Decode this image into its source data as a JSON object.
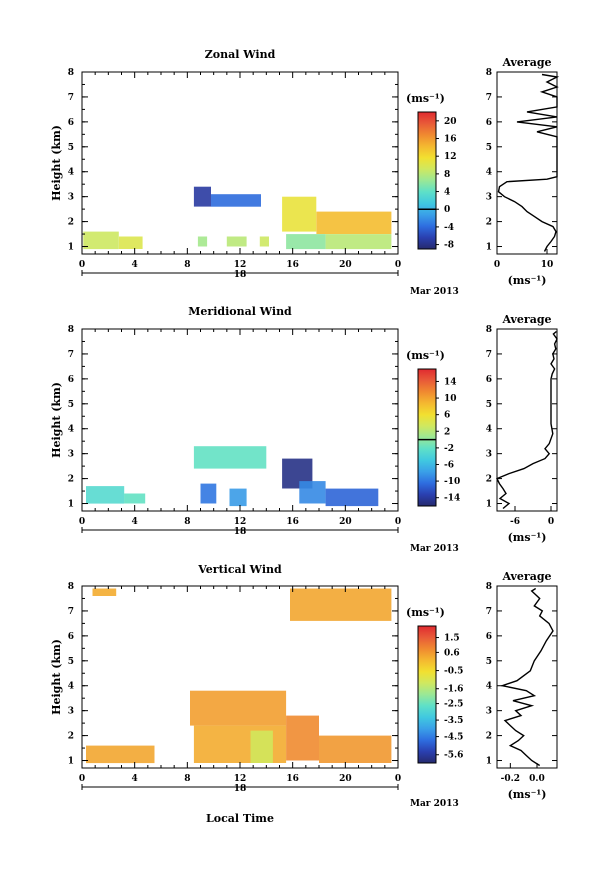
{
  "figure": {
    "x_axis_label": "Local Time",
    "date_label": "Mar 2013",
    "day_label": "18"
  },
  "chart_data": [
    {
      "type": "heatmap",
      "id": "zonal",
      "title": "Zonal Wind",
      "ylabel": "Height (km)",
      "units_label": "(ms⁻¹)",
      "x_ticks": [
        "0",
        "4",
        "8",
        "12",
        "16",
        "20",
        "0"
      ],
      "x_range_hours": [
        0,
        24
      ],
      "y_ticks": [
        "1",
        "2",
        "3",
        "4",
        "5",
        "6",
        "7",
        "8"
      ],
      "y_range_km": [
        0.7,
        8.0
      ],
      "colorbar": {
        "ticks": [
          "20",
          "16",
          "12",
          "8",
          "4",
          "0",
          "-4",
          "-8"
        ],
        "range": [
          -9,
          22
        ],
        "marker_value": 0
      },
      "patches": [
        {
          "t": [
            0.1,
            2.8
          ],
          "z": [
            0.9,
            1.6
          ],
          "value": 9
        },
        {
          "t": [
            2.8,
            4.6
          ],
          "z": [
            0.9,
            1.4
          ],
          "value": 10
        },
        {
          "t": [
            8.5,
            9.8
          ],
          "z": [
            2.6,
            3.4
          ],
          "value": -7
        },
        {
          "t": [
            9.8,
            13.6
          ],
          "z": [
            2.6,
            3.1
          ],
          "value": -4
        },
        {
          "t": [
            8.8,
            9.5
          ],
          "z": [
            1.0,
            1.4
          ],
          "value": 7
        },
        {
          "t": [
            11.0,
            12.5
          ],
          "z": [
            1.0,
            1.4
          ],
          "value": 8
        },
        {
          "t": [
            13.5,
            14.2
          ],
          "z": [
            1.0,
            1.4
          ],
          "value": 9
        },
        {
          "t": [
            15.2,
            17.8
          ],
          "z": [
            1.6,
            3.0
          ],
          "value": 11
        },
        {
          "t": [
            17.8,
            23.5
          ],
          "z": [
            1.5,
            2.4
          ],
          "value": 14
        },
        {
          "t": [
            15.5,
            18.5
          ],
          "z": [
            0.9,
            1.5
          ],
          "value": 6
        },
        {
          "t": [
            18.5,
            23.5
          ],
          "z": [
            0.9,
            1.5
          ],
          "value": 8
        }
      ],
      "profile": {
        "title": "Average",
        "xlabel": "(ms⁻¹)",
        "x_ticks": [
          "0",
          "10"
        ],
        "x_range": [
          0,
          12
        ],
        "heights": [
          0.8,
          1.0,
          1.2,
          1.4,
          1.6,
          1.8,
          2.0,
          2.2,
          2.4,
          2.6,
          2.8,
          3.0,
          3.2,
          3.4,
          3.6,
          3.7,
          3.8,
          4.2,
          4.6,
          5.0,
          5.4,
          5.6,
          5.8,
          6.0,
          6.2,
          6.4,
          6.6,
          6.8,
          7.0,
          7.2,
          7.4,
          7.6,
          7.8,
          7.9
        ],
        "values": [
          9.5,
          10.0,
          10.8,
          11.5,
          11.8,
          11.2,
          9.0,
          7.5,
          6.0,
          5.0,
          3.5,
          1.5,
          0.3,
          0.5,
          2.0,
          10.0,
          12.0,
          12.0,
          12.0,
          12.0,
          12.0,
          8.0,
          12.0,
          4.0,
          12.0,
          6.0,
          12.0,
          12.0,
          12.0,
          9.0,
          12.0,
          10.0,
          12.0,
          9.0
        ]
      }
    },
    {
      "type": "heatmap",
      "id": "meridional",
      "title": "Meridional Wind",
      "ylabel": "Height (km)",
      "units_label": "(ms⁻¹)",
      "x_ticks": [
        "0",
        "4",
        "8",
        "12",
        "16",
        "20",
        "0"
      ],
      "x_range_hours": [
        0,
        24
      ],
      "y_ticks": [
        "1",
        "2",
        "3",
        "4",
        "5",
        "6",
        "7",
        "8"
      ],
      "y_range_km": [
        0.7,
        8.0
      ],
      "colorbar": {
        "ticks": [
          "14",
          "10",
          "6",
          "2",
          "-2",
          "-6",
          "-10",
          "-14"
        ],
        "range": [
          -16,
          17
        ],
        "marker_value": 0
      },
      "patches": [
        {
          "t": [
            0.3,
            3.2
          ],
          "z": [
            1.0,
            1.7
          ],
          "value": -3
        },
        {
          "t": [
            3.2,
            4.8
          ],
          "z": [
            1.0,
            1.4
          ],
          "value": -2
        },
        {
          "t": [
            8.5,
            14.0
          ],
          "z": [
            2.4,
            3.3
          ],
          "value": -2
        },
        {
          "t": [
            9.0,
            10.2
          ],
          "z": [
            1.0,
            1.8
          ],
          "value": -10
        },
        {
          "t": [
            11.2,
            12.5
          ],
          "z": [
            0.9,
            1.6
          ],
          "value": -8
        },
        {
          "t": [
            15.2,
            17.5
          ],
          "z": [
            1.6,
            2.8
          ],
          "value": -15
        },
        {
          "t": [
            16.5,
            18.5
          ],
          "z": [
            1.0,
            1.9
          ],
          "value": -9
        },
        {
          "t": [
            18.5,
            22.5
          ],
          "z": [
            0.9,
            1.6
          ],
          "value": -11
        }
      ],
      "profile": {
        "title": "Average",
        "xlabel": "(ms⁻¹)",
        "x_ticks": [
          "-6",
          "0"
        ],
        "x_range": [
          -9,
          1
        ],
        "heights": [
          0.8,
          1.0,
          1.2,
          1.4,
          1.6,
          1.8,
          2.0,
          2.2,
          2.4,
          2.6,
          2.8,
          3.0,
          3.2,
          3.4,
          3.6,
          3.8,
          4.2,
          4.6,
          5.0,
          5.4,
          5.8,
          6.0,
          6.2,
          6.4,
          6.6,
          6.8,
          7.0,
          7.2,
          7.4,
          7.6,
          7.8,
          7.9
        ],
        "values": [
          -8.0,
          -7.0,
          -8.5,
          -7.5,
          -8.0,
          -8.6,
          -9.0,
          -7.0,
          -4.5,
          -3.0,
          -1.0,
          -0.3,
          -1.0,
          -0.3,
          0.0,
          0.3,
          0.0,
          0.0,
          0.0,
          0.0,
          0.0,
          0.0,
          0.2,
          0.6,
          0.0,
          0.5,
          0.3,
          0.8,
          0.6,
          1.0,
          0.4,
          0.9
        ]
      }
    },
    {
      "type": "heatmap",
      "id": "vertical",
      "title": "Vertical Wind",
      "ylabel": "Height (km)",
      "units_label": "(ms⁻¹)",
      "x_ticks": [
        "0",
        "4",
        "8",
        "12",
        "16",
        "20",
        "0"
      ],
      "x_range_hours": [
        0,
        24
      ],
      "y_ticks": [
        "1",
        "2",
        "3",
        "4",
        "5",
        "6",
        "7",
        "8"
      ],
      "y_range_km": [
        0.7,
        8.0
      ],
      "colorbar": {
        "ticks": [
          "1.5",
          "0.6",
          "-0.5",
          "-1.6",
          "-2.5",
          "-3.5",
          "-4.5",
          "-5.6"
        ],
        "range": [
          -6.1,
          2.2
        ],
        "marker_value": null
      },
      "patches": [
        {
          "t": [
            0.3,
            5.5
          ],
          "z": [
            0.9,
            1.6
          ],
          "value": 0.4
        },
        {
          "t": [
            8.2,
            15.5
          ],
          "z": [
            2.4,
            3.8
          ],
          "value": 0.5
        },
        {
          "t": [
            8.5,
            15.5
          ],
          "z": [
            0.9,
            2.4
          ],
          "value": 0.3
        },
        {
          "t": [
            12.8,
            14.5
          ],
          "z": [
            0.9,
            2.2
          ],
          "value": -1.2
        },
        {
          "t": [
            15.5,
            18.0
          ],
          "z": [
            1.0,
            2.8
          ],
          "value": 0.8
        },
        {
          "t": [
            18.0,
            23.5
          ],
          "z": [
            0.9,
            2.0
          ],
          "value": 0.6
        },
        {
          "t": [
            0.8,
            2.6
          ],
          "z": [
            7.6,
            7.9
          ],
          "value": 0.3
        },
        {
          "t": [
            15.8,
            23.5
          ],
          "z": [
            6.6,
            7.9
          ],
          "value": 0.4
        }
      ],
      "profile": {
        "title": "Average",
        "xlabel": "(ms⁻¹)",
        "x_ticks": [
          "-0.2",
          "0.0"
        ],
        "x_range": [
          -0.3,
          0.15
        ],
        "heights": [
          0.8,
          1.0,
          1.2,
          1.4,
          1.6,
          1.8,
          2.0,
          2.2,
          2.4,
          2.6,
          2.8,
          3.0,
          3.2,
          3.4,
          3.6,
          3.8,
          4.0,
          4.2,
          4.6,
          5.0,
          5.4,
          5.8,
          6.2,
          6.5,
          6.8,
          7.0,
          7.2,
          7.5,
          7.8,
          7.9
        ],
        "values": [
          0.02,
          -0.04,
          -0.08,
          -0.12,
          -0.2,
          -0.14,
          -0.1,
          -0.16,
          -0.2,
          -0.24,
          -0.12,
          -0.16,
          -0.04,
          -0.18,
          -0.02,
          -0.08,
          -0.26,
          -0.15,
          -0.05,
          -0.02,
          0.03,
          0.07,
          0.12,
          0.09,
          0.02,
          0.04,
          -0.02,
          0.02,
          -0.04,
          -0.01
        ]
      }
    }
  ]
}
